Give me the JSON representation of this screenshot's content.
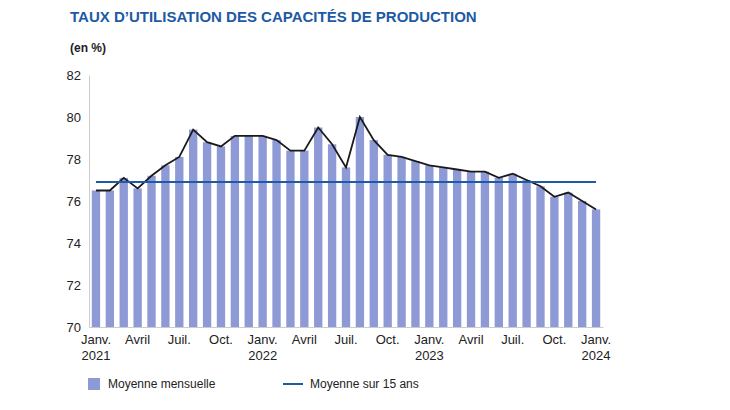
{
  "chart_data": {
    "type": "bar",
    "title": "TAUX D’UTILISATION DES CAPACITÉS DE PRODUCTION",
    "subtitle": "(en %)",
    "categories": [
      "Janv. 2021",
      null,
      null,
      "Avril",
      null,
      null,
      "Juil.",
      null,
      null,
      "Oct.",
      null,
      null,
      "Janv. 2022",
      null,
      null,
      "Avril",
      null,
      null,
      "Juil.",
      null,
      null,
      "Oct.",
      null,
      null,
      "Janv. 2023",
      null,
      null,
      "Avril",
      null,
      null,
      "Juil.",
      null,
      null,
      "Oct.",
      null,
      null,
      "Janv. 2024"
    ],
    "series": [
      {
        "name": "Moyenne mensuelle",
        "type": "bar",
        "color": "#8e9ad6",
        "values": [
          76.5,
          76.5,
          77.1,
          76.6,
          77.2,
          77.7,
          78.1,
          79.4,
          78.8,
          78.6,
          79.1,
          79.1,
          79.1,
          78.9,
          78.4,
          78.4,
          79.5,
          78.7,
          77.6,
          80.0,
          78.9,
          78.2,
          78.1,
          77.9,
          77.7,
          77.6,
          77.5,
          77.4,
          77.4,
          77.1,
          77.3,
          77.0,
          76.7,
          76.2,
          76.4,
          76.0,
          75.6
        ]
      },
      {
        "name": "Moyenne sur 15 ans",
        "type": "line",
        "color": "#1f5aa8",
        "values": [
          76.9,
          76.9,
          76.9,
          76.9,
          76.9,
          76.9,
          76.9,
          76.9,
          76.9,
          76.9,
          76.9,
          76.9,
          76.9,
          76.9,
          76.9,
          76.9,
          76.9,
          76.9,
          76.9,
          76.9,
          76.9,
          76.9,
          76.9,
          76.9,
          76.9,
          76.9,
          76.9,
          76.9,
          76.9,
          76.9,
          76.9,
          76.9,
          76.9,
          76.9,
          76.9,
          76.9,
          76.9
        ]
      }
    ],
    "ylim": [
      70,
      82
    ],
    "yticks": [
      70,
      72,
      74,
      76,
      78,
      80,
      82
    ],
    "grid": false,
    "legend": "bottom"
  }
}
